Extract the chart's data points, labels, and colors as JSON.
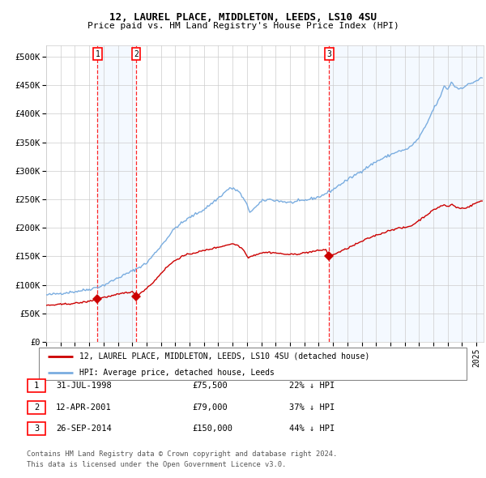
{
  "title": "12, LAUREL PLACE, MIDDLETON, LEEDS, LS10 4SU",
  "subtitle": "Price paid vs. HM Land Registry's House Price Index (HPI)",
  "xlim_start": 1995.0,
  "xlim_end": 2025.5,
  "ylim_min": 0,
  "ylim_max": 520000,
  "yticks": [
    0,
    50000,
    100000,
    150000,
    200000,
    250000,
    300000,
    350000,
    400000,
    450000,
    500000
  ],
  "ytick_labels": [
    "£0",
    "£50K",
    "£100K",
    "£150K",
    "£200K",
    "£250K",
    "£300K",
    "£350K",
    "£400K",
    "£450K",
    "£500K"
  ],
  "sale_dates": [
    1998.577,
    2001.276,
    2014.735
  ],
  "sale_prices": [
    75500,
    79000,
    150000
  ],
  "sale_labels": [
    "1",
    "2",
    "3"
  ],
  "vline_dates": [
    1998.577,
    2001.276,
    2014.735
  ],
  "red_line_color": "#cc0000",
  "blue_line_color": "#7aade0",
  "sale_marker_color": "#cc0000",
  "bg_span_color": "#ddeeff",
  "grid_color": "#cccccc",
  "legend_entries": [
    "12, LAUREL PLACE, MIDDLETON, LEEDS, LS10 4SU (detached house)",
    "HPI: Average price, detached house, Leeds"
  ],
  "table_data": [
    [
      "1",
      "31-JUL-1998",
      "£75,500",
      "22% ↓ HPI"
    ],
    [
      "2",
      "12-APR-2001",
      "£79,000",
      "37% ↓ HPI"
    ],
    [
      "3",
      "26-SEP-2014",
      "£150,000",
      "44% ↓ HPI"
    ]
  ],
  "footer_line1": "Contains HM Land Registry data © Crown copyright and database right 2024.",
  "footer_line2": "This data is licensed under the Open Government Licence v3.0."
}
